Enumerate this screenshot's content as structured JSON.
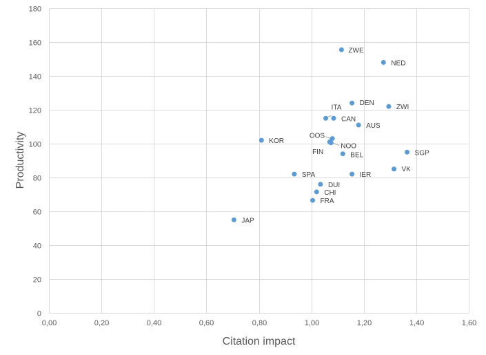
{
  "chart_data": {
    "type": "scatter",
    "title": "",
    "xlabel": "Citation impact",
    "ylabel": "Productivity",
    "xlim": [
      0,
      1.6
    ],
    "ylim": [
      0,
      180
    ],
    "xticks": [
      0,
      0.2,
      0.4,
      0.6,
      0.8,
      1.0,
      1.2,
      1.4,
      1.6
    ],
    "yticks": [
      0,
      20,
      40,
      60,
      80,
      100,
      120,
      140,
      160,
      180
    ],
    "xtick_labels": [
      "0,00",
      "0,20",
      "0,40",
      "0,60",
      "0,80",
      "1,00",
      "1,20",
      "1,40",
      "1,60"
    ],
    "ytick_labels": [
      "0",
      "20",
      "40",
      "60",
      "80",
      "100",
      "120",
      "140",
      "160",
      "180"
    ],
    "grid": true,
    "color": "#5b9bd5",
    "points": [
      {
        "label": "ZWE",
        "x": 1.115,
        "y": 155.5
      },
      {
        "label": "NED",
        "x": 1.275,
        "y": 148
      },
      {
        "label": "DEN",
        "x": 1.155,
        "y": 124
      },
      {
        "label": "ZWI",
        "x": 1.295,
        "y": 122
      },
      {
        "label": "ITA",
        "x": 1.055,
        "y": 115
      },
      {
        "label": "CAN",
        "x": 1.085,
        "y": 115
      },
      {
        "label": "AUS",
        "x": 1.18,
        "y": 111
      },
      {
        "label": "OOS",
        "x": 1.08,
        "y": 103
      },
      {
        "label": "NOO",
        "x": 1.07,
        "y": 101
      },
      {
        "label": "KOR",
        "x": 0.81,
        "y": 102
      },
      {
        "label": "FIN",
        "x": 1.075,
        "y": 100.5
      },
      {
        "label": "BEL",
        "x": 1.12,
        "y": 94
      },
      {
        "label": "SGP",
        "x": 1.365,
        "y": 95
      },
      {
        "label": "VK",
        "x": 1.315,
        "y": 85
      },
      {
        "label": "SPA",
        "x": 0.935,
        "y": 82
      },
      {
        "label": "IER",
        "x": 1.155,
        "y": 82
      },
      {
        "label": "DUI",
        "x": 1.035,
        "y": 76
      },
      {
        "label": "CHI",
        "x": 1.02,
        "y": 71.5
      },
      {
        "label": "FRA",
        "x": 1.005,
        "y": 66.5
      },
      {
        "label": "JAP",
        "x": 0.705,
        "y": 55
      }
    ]
  }
}
